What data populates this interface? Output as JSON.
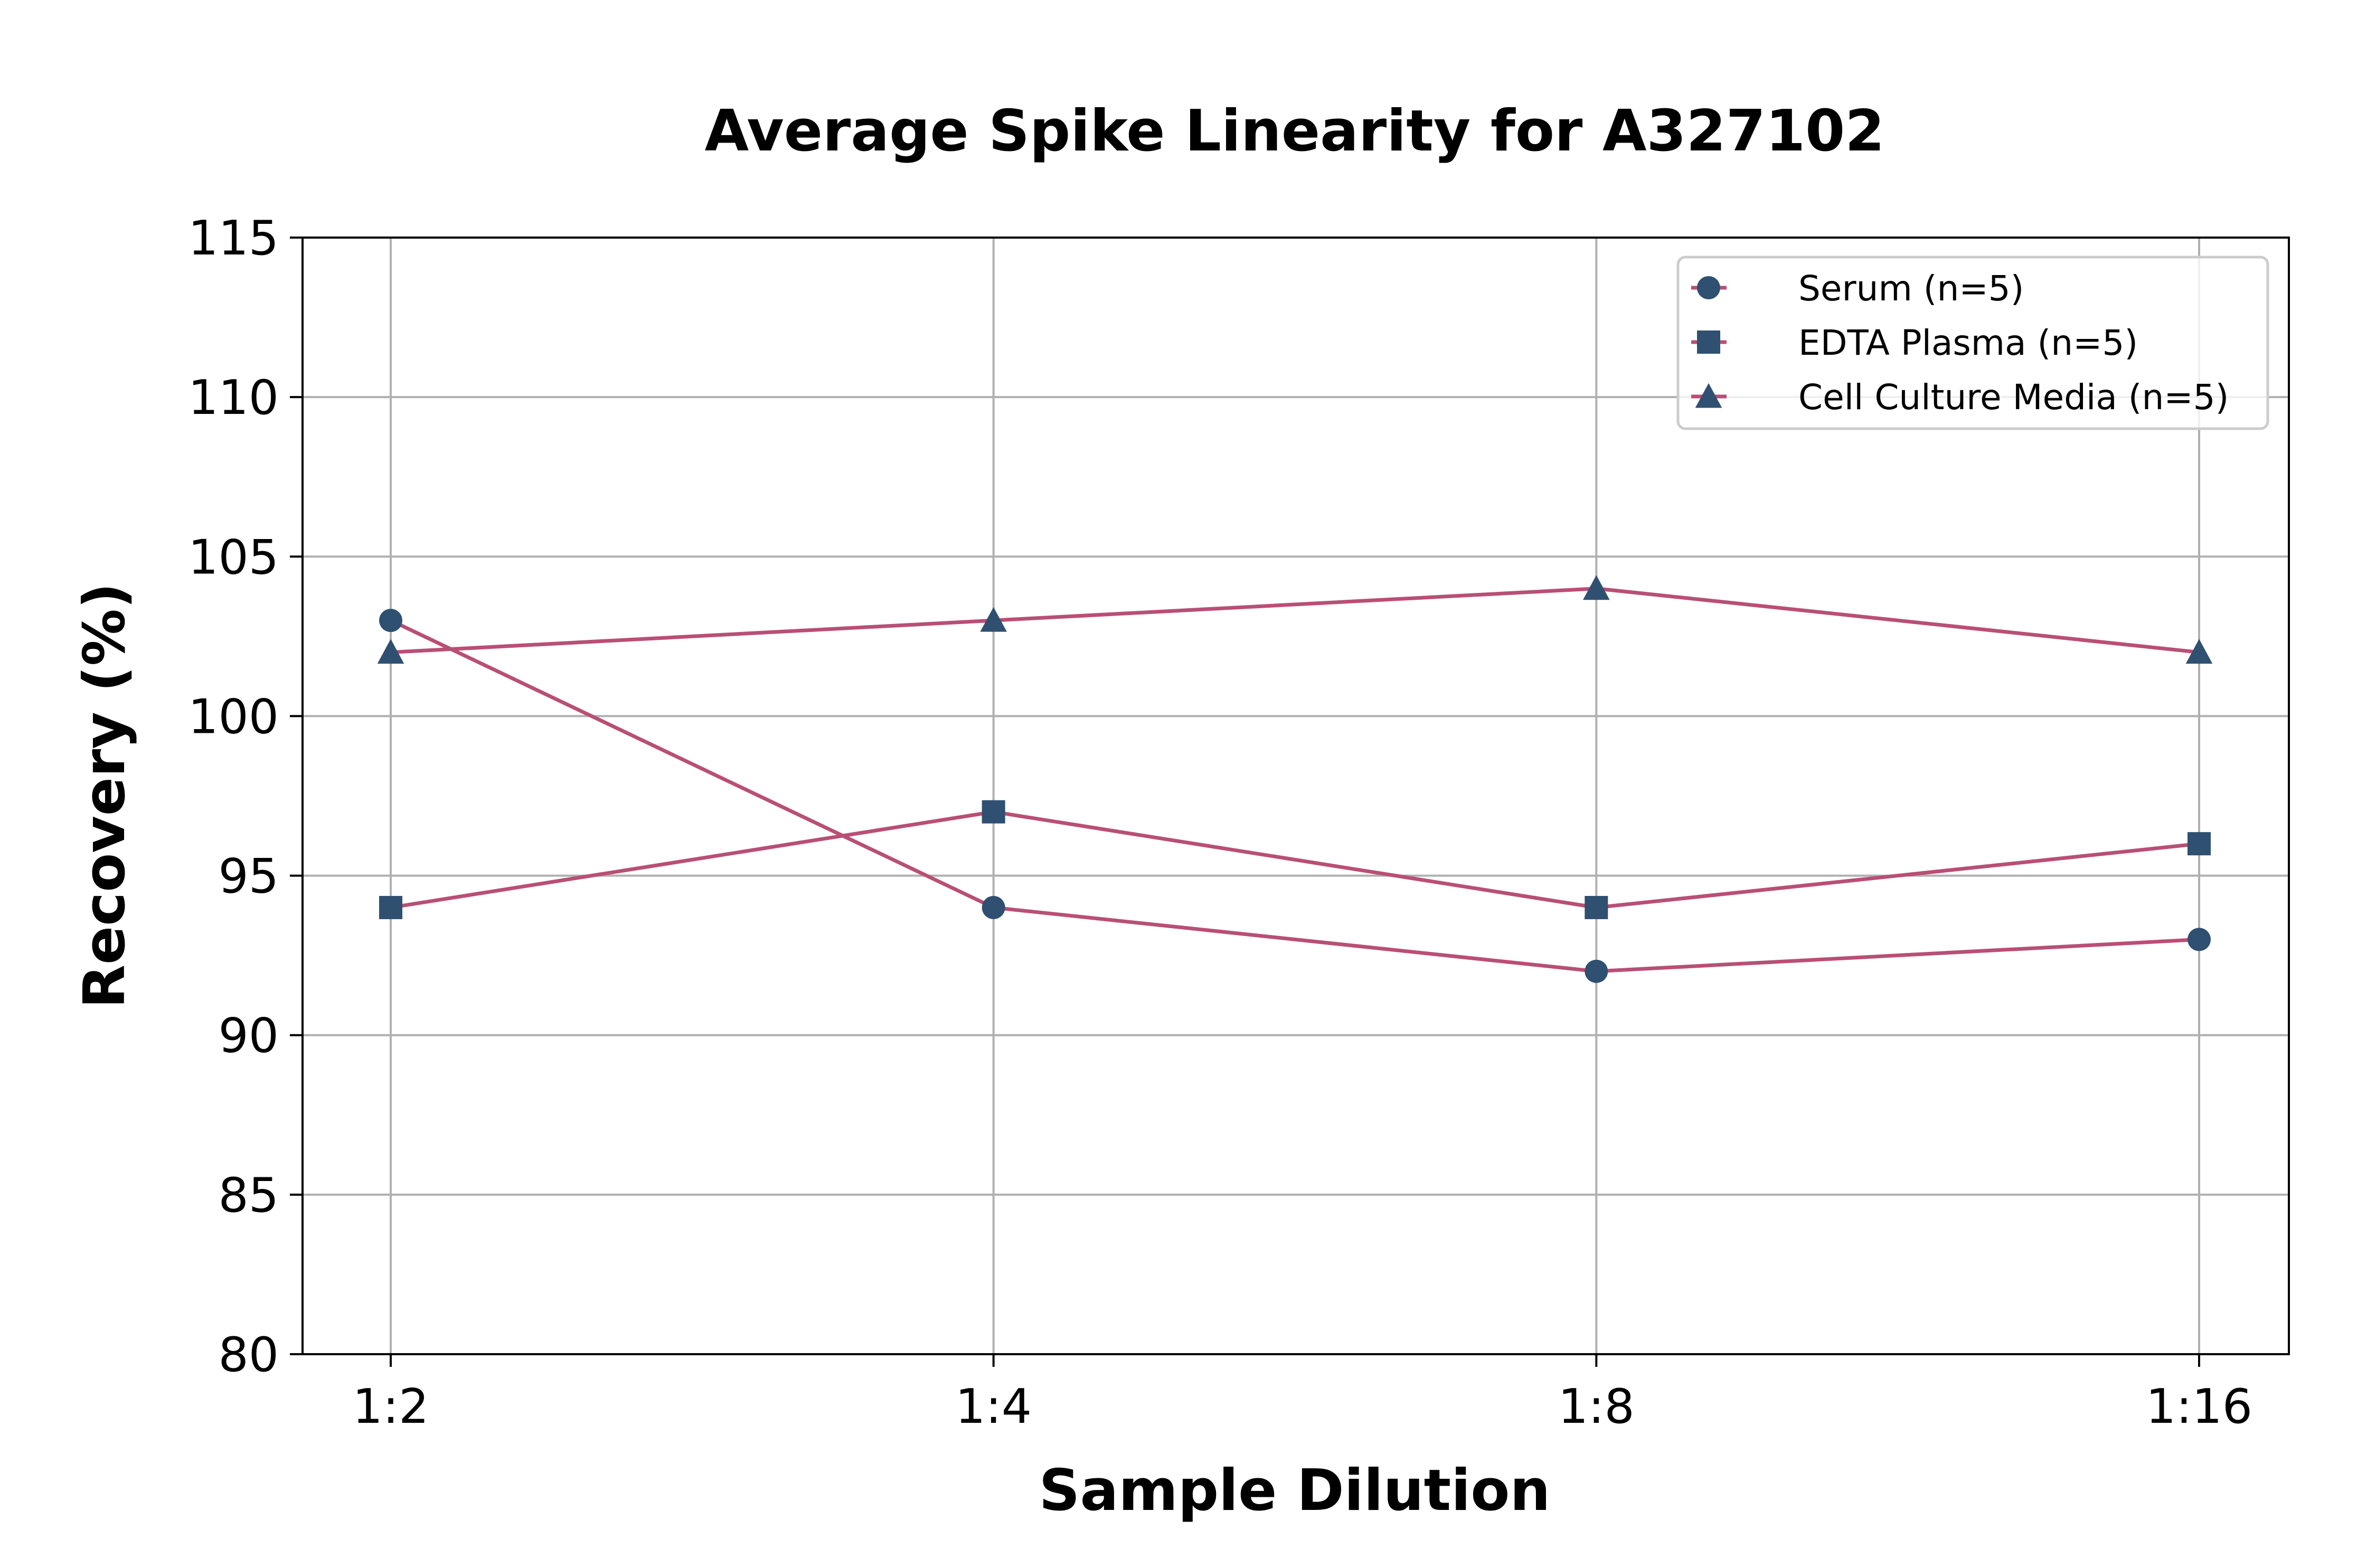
{
  "chart_data": {
    "type": "line",
    "title": "Average Spike Linearity for A327102",
    "xlabel": "Sample Dilution",
    "ylabel": "Recovery (%)",
    "categories": [
      "1:2",
      "1:4",
      "1:8",
      "1:16"
    ],
    "ylim": [
      80,
      115
    ],
    "yticks": [
      80,
      85,
      90,
      95,
      100,
      105,
      110,
      115
    ],
    "grid": true,
    "legend_position": "top-right",
    "series": [
      {
        "name": "Serum (n=5)",
        "marker": "circle",
        "values": [
          103,
          94,
          92,
          93
        ]
      },
      {
        "name": "EDTA Plasma (n=5)",
        "marker": "square",
        "values": [
          94,
          97,
          94,
          96
        ]
      },
      {
        "name": "Cell Culture Media (n=5)",
        "marker": "triangle",
        "values": [
          102,
          103,
          104,
          102
        ]
      }
    ],
    "colors": {
      "line": "#b94f75",
      "marker": "#2f5070",
      "grid": "#b0b0b0",
      "axis": "#000000"
    }
  }
}
